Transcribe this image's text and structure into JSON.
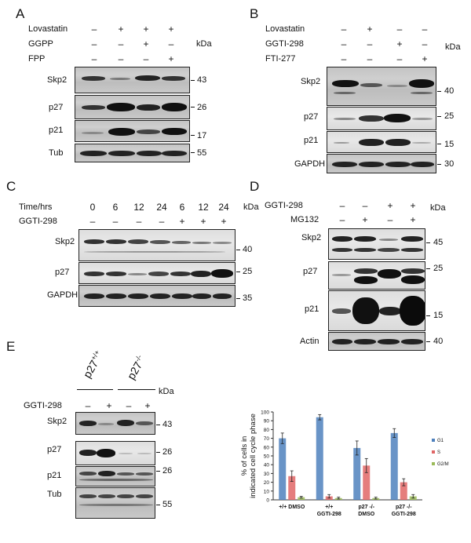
{
  "panelA": {
    "letter": "A",
    "conditions": [
      {
        "label": "Lovastatin",
        "signs": [
          "–",
          "+",
          "+",
          "+"
        ]
      },
      {
        "label": "GGPP",
        "signs": [
          "–",
          "–",
          "+",
          "–"
        ]
      },
      {
        "label": "FPP",
        "signs": [
          "–",
          "–",
          "–",
          "+"
        ]
      }
    ],
    "kda": "kDa",
    "rows": [
      {
        "label": "Skp2",
        "mw": "43"
      },
      {
        "label": "p27",
        "mw": "26"
      },
      {
        "label": "p21",
        "mw": "17"
      },
      {
        "label": "Tub",
        "mw": "55"
      }
    ]
  },
  "panelB": {
    "letter": "B",
    "conditions": [
      {
        "label": "Lovastatin",
        "signs": [
          "–",
          "+",
          "–",
          "–"
        ]
      },
      {
        "label": "GGTI-298",
        "signs": [
          "–",
          "–",
          "+",
          "–"
        ]
      },
      {
        "label": "FTI-277",
        "signs": [
          "–",
          "–",
          "–",
          "+"
        ]
      }
    ],
    "kda": "kDa",
    "rows": [
      {
        "label": "Skp2",
        "mw": "40"
      },
      {
        "label": "p27",
        "mw": "25"
      },
      {
        "label": "p21",
        "mw": "15"
      },
      {
        "label": "GAPDH",
        "mw": "30"
      }
    ]
  },
  "panelC": {
    "letter": "C",
    "time_label": "Time/hrs",
    "times": [
      "0",
      "6",
      "12",
      "24",
      "6",
      "12",
      "24"
    ],
    "ggti_label": "GGTI-298",
    "ggti_signs": [
      "–",
      "–",
      "–",
      "–",
      "+",
      "+",
      "+"
    ],
    "kda": "kDa",
    "rows": [
      {
        "label": "Skp2",
        "mw": "40"
      },
      {
        "label": "p27",
        "mw": "25"
      },
      {
        "label": "GAPDH",
        "mw": "35"
      }
    ]
  },
  "panelD": {
    "letter": "D",
    "conditions": [
      {
        "label": "GGTI-298",
        "signs": [
          "–",
          "–",
          "+",
          "+"
        ]
      },
      {
        "label": "MG132",
        "signs": [
          "–",
          "+",
          "–",
          "+"
        ]
      }
    ],
    "kda": "kDa",
    "rows": [
      {
        "label": "Skp2",
        "mw": "45"
      },
      {
        "label": "p27",
        "mw": "25"
      },
      {
        "label": "p21",
        "mw": "15"
      },
      {
        "label": "Actin",
        "mw": "40"
      }
    ]
  },
  "panelE": {
    "letter": "E",
    "genotypes": [
      "p27",
      "p27"
    ],
    "genotype_sups": [
      "+/+",
      "-/-"
    ],
    "ggti_label": "GGTI-298",
    "ggti_signs": [
      "–",
      "+",
      "–",
      "+"
    ],
    "kda": "kDa",
    "rows": [
      {
        "label": "Skp2",
        "mw": "43"
      },
      {
        "label": "p27",
        "mw": "26"
      },
      {
        "label": "p21",
        "mw": "26"
      },
      {
        "label": "Tub",
        "mw": "55"
      }
    ]
  },
  "chart_data": {
    "type": "bar",
    "ylabel": "% of cells in indicated cell cycle phase",
    "ylim": [
      0,
      100
    ],
    "yticks": [
      0,
      10,
      20,
      30,
      40,
      50,
      60,
      70,
      80,
      90,
      100
    ],
    "categories": [
      [
        "+/+ DMSO"
      ],
      [
        "+/+",
        "GGTI-298"
      ],
      [
        "p27 -/-",
        "DMSO"
      ],
      [
        "p27 -/-",
        "GGTI-298"
      ]
    ],
    "series": [
      {
        "name": "G1",
        "color": "#4f81bd",
        "values": [
          70,
          94,
          59,
          76
        ],
        "errors": [
          6,
          3,
          8,
          5
        ]
      },
      {
        "name": "S",
        "color": "#e06666",
        "values": [
          27,
          4,
          39,
          20
        ],
        "errors": [
          6,
          2,
          8,
          4
        ]
      },
      {
        "name": "G2/M",
        "color": "#9bbb59",
        "values": [
          3,
          2,
          2,
          4
        ],
        "errors": [
          1,
          1,
          1,
          2
        ]
      }
    ],
    "legend_position": "right"
  }
}
